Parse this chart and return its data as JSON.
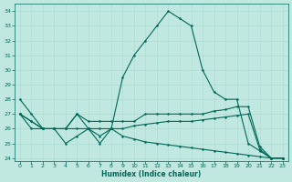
{
  "xlabel": "Humidex (Indice chaleur)",
  "background_color": "#c0e8e0",
  "line_color": "#006858",
  "grid_color": "#a8d8d0",
  "xlim": [
    -0.5,
    23.5
  ],
  "ylim": [
    23.8,
    34.5
  ],
  "yticks": [
    24,
    25,
    26,
    27,
    28,
    29,
    30,
    31,
    32,
    33,
    34
  ],
  "xticks": [
    0,
    1,
    2,
    3,
    4,
    5,
    6,
    7,
    8,
    9,
    10,
    11,
    12,
    13,
    14,
    15,
    16,
    17,
    18,
    19,
    20,
    21,
    22,
    23
  ],
  "line1_x": [
    0,
    1,
    2,
    3,
    4,
    5,
    6,
    7,
    8,
    9,
    10,
    11,
    12,
    13,
    14,
    15,
    16,
    17,
    18,
    19,
    20,
    21,
    22,
    23
  ],
  "line1_y": [
    28,
    27,
    26,
    26,
    26,
    27,
    26,
    25,
    26,
    29.5,
    31,
    32,
    33,
    34,
    33.5,
    33,
    30,
    28.5,
    28,
    28,
    25,
    24.5,
    24,
    24
  ],
  "line2_x": [
    0,
    1,
    2,
    3,
    4,
    5,
    6,
    7,
    8,
    9,
    10,
    11,
    12,
    13,
    14,
    15,
    16,
    17,
    18,
    19,
    20,
    21,
    22,
    23
  ],
  "line2_y": [
    27,
    26.5,
    26,
    26,
    26,
    27,
    26.5,
    26.5,
    26.5,
    26.5,
    26.5,
    27,
    27,
    27,
    27,
    27,
    27,
    27.2,
    27.3,
    27.5,
    27.5,
    24.8,
    24,
    24
  ],
  "line3_x": [
    0,
    1,
    2,
    3,
    4,
    5,
    6,
    7,
    8,
    9,
    10,
    11,
    12,
    13,
    14,
    15,
    16,
    17,
    18,
    19,
    20,
    21,
    22,
    23
  ],
  "line3_y": [
    27,
    26.5,
    26,
    26,
    26,
    26,
    26,
    26,
    26,
    26,
    26.2,
    26.3,
    26.4,
    26.5,
    26.5,
    26.5,
    26.6,
    26.7,
    26.8,
    26.9,
    27,
    24.6,
    24,
    24
  ],
  "line4_x": [
    0,
    1,
    2,
    3,
    4,
    5,
    6,
    7,
    8,
    9,
    10,
    11,
    12,
    13,
    14,
    15,
    16,
    17,
    18,
    19,
    20,
    21,
    22,
    23
  ],
  "line4_y": [
    27,
    26,
    26,
    26,
    25,
    25.5,
    26,
    25.5,
    26,
    25.5,
    25.3,
    25.1,
    25,
    24.9,
    24.8,
    24.7,
    24.6,
    24.5,
    24.4,
    24.3,
    24.2,
    24.1,
    24,
    24
  ]
}
